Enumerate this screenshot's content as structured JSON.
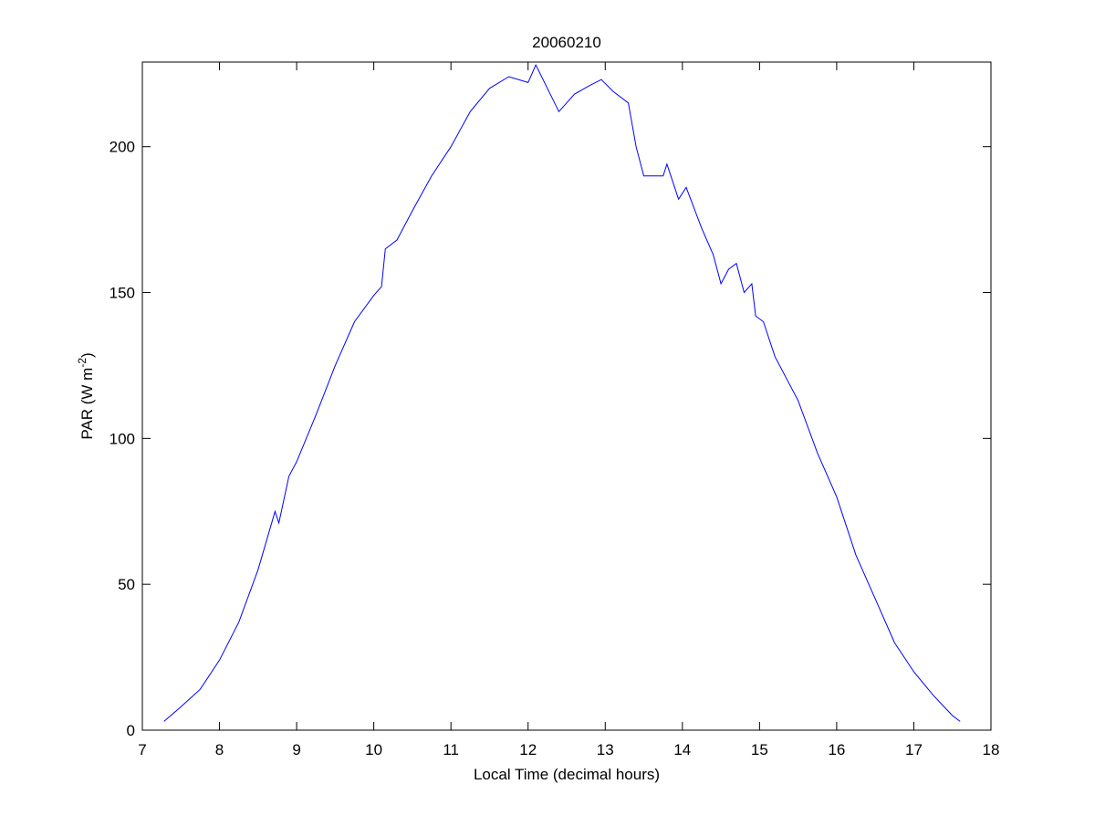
{
  "chart_data": {
    "type": "line",
    "title": "20060210",
    "xlabel": "Local Time (decimal hours)",
    "ylabel_main": "PAR (W m",
    "ylabel_sup": "-2",
    "ylabel_end": ")",
    "xlim": [
      7,
      18
    ],
    "ylim": [
      0,
      229
    ],
    "xticks": [
      7,
      8,
      9,
      10,
      11,
      12,
      13,
      14,
      15,
      16,
      17,
      18
    ],
    "yticks": [
      0,
      50,
      100,
      150,
      200
    ],
    "grid": false,
    "series": [
      {
        "name": "PAR",
        "color": "#0000ff",
        "x": [
          7.28,
          7.5,
          7.75,
          8.0,
          8.25,
          8.5,
          8.72,
          8.77,
          8.9,
          9.0,
          9.25,
          9.5,
          9.75,
          10.0,
          10.1,
          10.15,
          10.3,
          10.5,
          10.75,
          11.0,
          11.25,
          11.5,
          11.75,
          12.0,
          12.1,
          12.25,
          12.4,
          12.6,
          12.8,
          12.95,
          13.1,
          13.3,
          13.4,
          13.5,
          13.75,
          13.8,
          13.95,
          14.05,
          14.25,
          14.4,
          14.5,
          14.6,
          14.7,
          14.8,
          14.9,
          14.95,
          15.05,
          15.2,
          15.5,
          15.75,
          16.0,
          16.25,
          16.5,
          16.75,
          17.0,
          17.25,
          17.5,
          17.6
        ],
        "y": [
          3,
          8,
          14,
          24,
          37,
          55,
          75,
          71,
          87,
          92,
          108,
          125,
          140,
          149,
          152,
          165,
          168,
          178,
          190,
          200,
          212,
          220,
          224,
          222,
          228,
          220,
          212,
          218,
          221,
          223,
          219,
          215,
          200,
          190,
          190,
          194,
          182,
          186,
          172,
          163,
          153,
          158,
          160,
          150,
          153,
          142,
          140,
          128,
          113,
          95,
          80,
          60,
          45,
          30,
          20,
          12,
          5,
          3
        ]
      }
    ]
  }
}
